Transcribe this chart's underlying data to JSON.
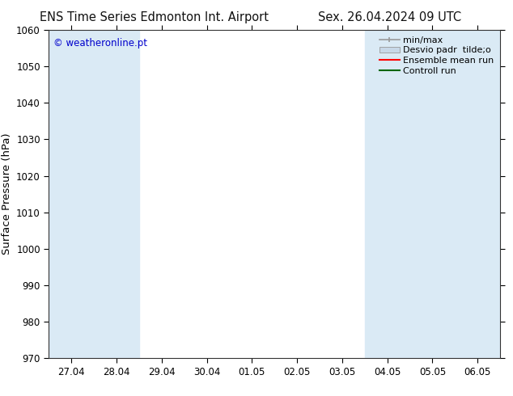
{
  "title_left": "ENS Time Series Edmonton Int. Airport",
  "title_right": "Sex. 26.04.2024 09 UTC",
  "ylabel": "Surface Pressure (hPa)",
  "ylim": [
    970,
    1060
  ],
  "yticks": [
    970,
    980,
    990,
    1000,
    1010,
    1020,
    1030,
    1040,
    1050,
    1060
  ],
  "xtick_labels": [
    "27.04",
    "28.04",
    "29.04",
    "30.04",
    "01.05",
    "02.05",
    "03.05",
    "04.05",
    "05.05",
    "06.05"
  ],
  "watermark": "© weatheronline.pt",
  "watermark_color": "#0000cc",
  "bg_color": "#ffffff",
  "plot_bg_color": "#ffffff",
  "shaded_band_color": "#daeaf5",
  "shaded_columns": [
    0,
    1,
    7,
    8,
    9
  ],
  "legend_entries": [
    {
      "label": "min/max",
      "color": "#aaaaaa",
      "type": "minmax"
    },
    {
      "label": "Desvio padr  tilde;o",
      "color": "#cccccc",
      "type": "shade"
    },
    {
      "label": "Ensemble mean run",
      "color": "#ff0000",
      "type": "line"
    },
    {
      "label": "Controll run",
      "color": "#006600",
      "type": "line"
    }
  ],
  "title_fontsize": 10.5,
  "tick_fontsize": 8.5,
  "ylabel_fontsize": 9.5,
  "legend_fontsize": 8
}
